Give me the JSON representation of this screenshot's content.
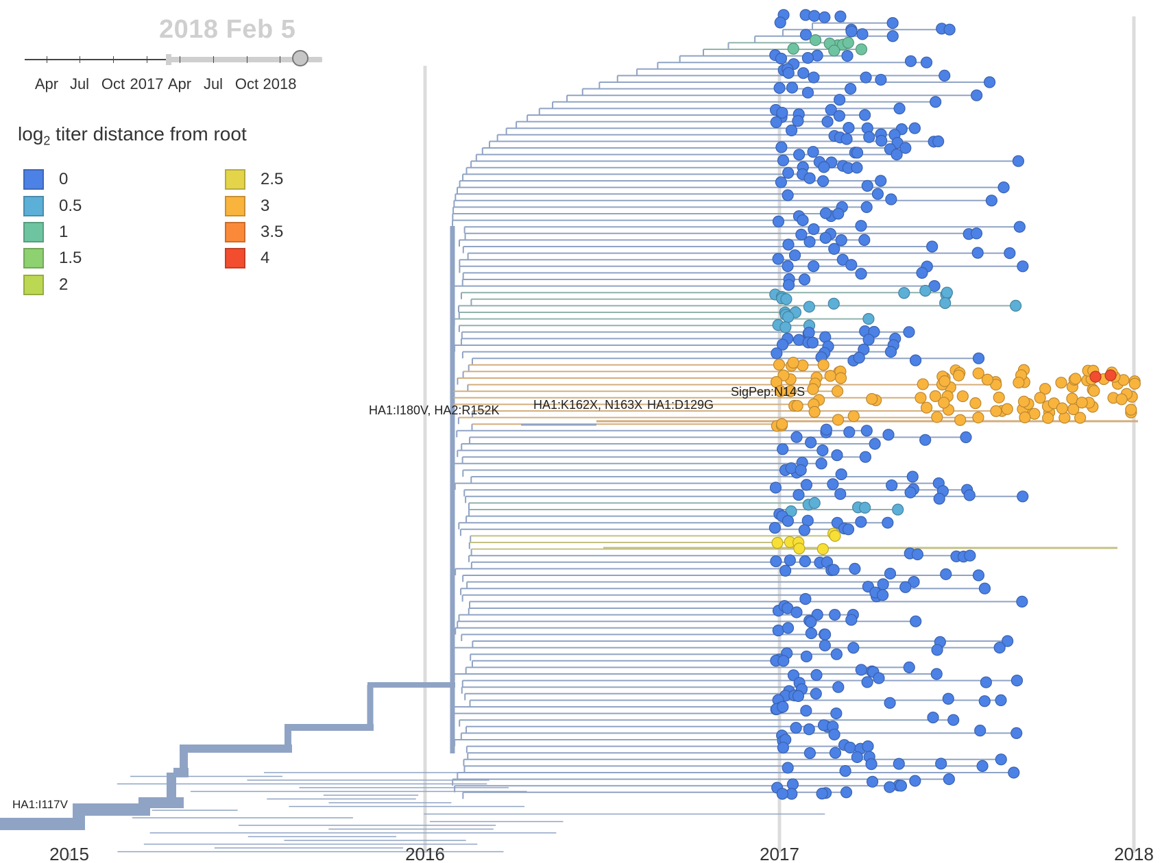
{
  "date_display": "2018 Feb 5",
  "slider": {
    "tick_labels": [
      "Apr",
      "Jul",
      "Oct",
      "2017",
      "Apr",
      "Jul",
      "Oct",
      "2018"
    ]
  },
  "legend": {
    "title_prefix": "log",
    "title_sub": "2",
    "title_suffix": " titer distance from root",
    "items": [
      {
        "label": "0",
        "color": "#4c81e6"
      },
      {
        "label": "0.5",
        "color": "#5cafd6"
      },
      {
        "label": "1",
        "color": "#6ec4a0"
      },
      {
        "label": "1.5",
        "color": "#8ed170"
      },
      {
        "label": "2",
        "color": "#bcd752"
      },
      {
        "label": "2.5",
        "color": "#e3d44a"
      },
      {
        "label": "3",
        "color": "#f9b43e"
      },
      {
        "label": "3.5",
        "color": "#fa8a3a"
      },
      {
        "label": "4",
        "color": "#f24d2f"
      }
    ]
  },
  "time_axis": {
    "labels": [
      "2015",
      "2016",
      "2017",
      "2018"
    ]
  },
  "branch_labels": [
    "HA1:I117V",
    "HA1:I180V, HA2:R152K",
    "HA1:K162X, N163X",
    "HA1:D129G",
    "SigPep:N14S"
  ],
  "colors": {
    "branch": "#8fa3c4",
    "tip_blue": "#4c81e6",
    "tip_light_blue": "#5cafd6",
    "tip_teal": "#6ec4a0",
    "tip_yellow": "#f7df35",
    "tip_orange": "#f9b43e",
    "tip_red": "#f24d2f",
    "clade_orange_branch": "#d3ad7c",
    "clade_yellow_branch": "#c4c083",
    "clade_teal_branch": "#8fb2ab"
  }
}
